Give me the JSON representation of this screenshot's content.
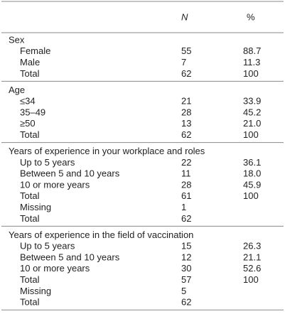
{
  "table": {
    "header": {
      "n": "N",
      "pct": "%"
    },
    "sections": [
      {
        "title": "Sex",
        "rows": [
          {
            "label": "Female",
            "n": "55",
            "pct": "88.7"
          },
          {
            "label": "Male",
            "n": "7",
            "pct": "11.3"
          },
          {
            "label": "Total",
            "n": "62",
            "pct": "100"
          }
        ]
      },
      {
        "title": "Age",
        "rows": [
          {
            "label": "≤34",
            "n": "21",
            "pct": "33.9"
          },
          {
            "label": "35–49",
            "n": "28",
            "pct": "45.2"
          },
          {
            "label": "≥50",
            "n": "13",
            "pct": "21.0"
          },
          {
            "label": "Total",
            "n": "62",
            "pct": "100"
          }
        ]
      },
      {
        "title": "Years of experience in your workplace and roles",
        "rows": [
          {
            "label": "Up to 5 years",
            "n": "22",
            "pct": "36.1"
          },
          {
            "label": "Between 5 and 10 years",
            "n": "11",
            "pct": "18.0"
          },
          {
            "label": "10 or more years",
            "n": "28",
            "pct": "45.9"
          },
          {
            "label": "Total",
            "n": "61",
            "pct": "100"
          },
          {
            "label": "Missing",
            "n": "1"
          },
          {
            "label": "Total",
            "n": "62"
          }
        ]
      },
      {
        "title": "Years of experience in the field of vaccination",
        "rows": [
          {
            "label": "Up to 5 years",
            "n": "15",
            "pct": "26.3"
          },
          {
            "label": "Between 5 and 10 years",
            "n": "12",
            "pct": "21.1"
          },
          {
            "label": "10 or more years",
            "n": "30",
            "pct": "52.6"
          },
          {
            "label": "Total",
            "n": "57",
            "pct": "100"
          },
          {
            "label": "Missing",
            "n": "5"
          },
          {
            "label": "Total",
            "n": "62"
          }
        ]
      }
    ]
  }
}
